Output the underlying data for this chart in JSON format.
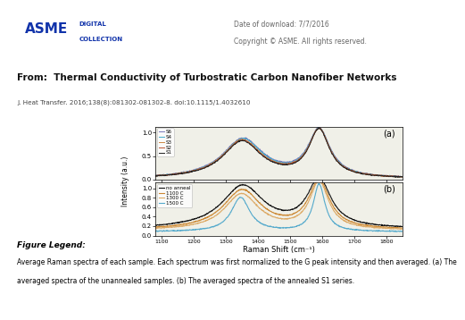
{
  "header_date": "Date of download: 7/7/2016",
  "header_copyright": "Copyright © ASME. All rights reserved.",
  "title_from": "From:  Thermal Conductivity of Turbostratic Carbon Nanofiber Networks",
  "subtitle": "J. Heat Transfer. 2016;138(8):081302-081302-8. doi:10.1115/1.4032610",
  "figure_legend_title": "Figure Legend:",
  "figure_legend_text": "Average Raman spectra of each sample. Each spectrum was first normalized to the G peak intensity and then averaged. (a) The averaged spectra of the unannealed samples. (b) The averaged spectra of the annealed S1 series.",
  "xlabel": "Raman Shift (cm⁻¹)",
  "ylabel": "Intensity (a.u.)",
  "panel_a_label": "(a)",
  "panel_b_label": "(b)",
  "panel_a_legend": [
    "S6",
    "S4",
    "S3",
    "S2",
    "S1"
  ],
  "panel_a_colors": [
    "#7777bb",
    "#44aacc",
    "#cc8844",
    "#bb5533",
    "#222222"
  ],
  "panel_b_legend": [
    "no anneal",
    "1100 C",
    "1300 C",
    "1500 C"
  ],
  "panel_b_colors": [
    "#111111",
    "#cc8833",
    "#ddaa66",
    "#55aacc"
  ],
  "bg_header": "#e0e0e0",
  "bg_title": "#e8e8e8",
  "bg_paper": "#ffffff",
  "bg_plot": "#f0f0e8"
}
